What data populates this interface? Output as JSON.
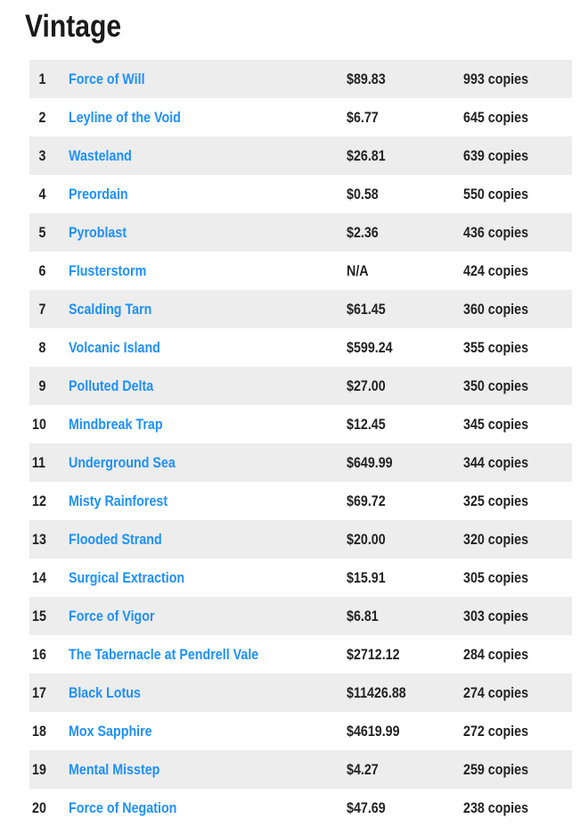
{
  "title": "Vintage",
  "colors": {
    "link": "#1e90ff",
    "alt_row_bg": "#ededed",
    "text": "#222222"
  },
  "table": {
    "rows": [
      {
        "rank": "1",
        "name": "Force of Will",
        "price": "$89.83",
        "copies": "993 copies"
      },
      {
        "rank": "2",
        "name": "Leyline of the Void",
        "price": "$6.77",
        "copies": "645 copies"
      },
      {
        "rank": "3",
        "name": "Wasteland",
        "price": "$26.81",
        "copies": "639 copies"
      },
      {
        "rank": "4",
        "name": "Preordain",
        "price": "$0.58",
        "copies": "550 copies"
      },
      {
        "rank": "5",
        "name": "Pyroblast",
        "price": "$2.36",
        "copies": "436 copies"
      },
      {
        "rank": "6",
        "name": "Flusterstorm",
        "price": "N/A",
        "copies": "424 copies"
      },
      {
        "rank": "7",
        "name": "Scalding Tarn",
        "price": "$61.45",
        "copies": "360 copies"
      },
      {
        "rank": "8",
        "name": "Volcanic Island",
        "price": "$599.24",
        "copies": "355 copies"
      },
      {
        "rank": "9",
        "name": "Polluted Delta",
        "price": "$27.00",
        "copies": "350 copies"
      },
      {
        "rank": "10",
        "name": "Mindbreak Trap",
        "price": "$12.45",
        "copies": "345 copies"
      },
      {
        "rank": "11",
        "name": "Underground Sea",
        "price": "$649.99",
        "copies": "344 copies"
      },
      {
        "rank": "12",
        "name": "Misty Rainforest",
        "price": "$69.72",
        "copies": "325 copies"
      },
      {
        "rank": "13",
        "name": "Flooded Strand",
        "price": "$20.00",
        "copies": "320 copies"
      },
      {
        "rank": "14",
        "name": "Surgical Extraction",
        "price": "$15.91",
        "copies": "305 copies"
      },
      {
        "rank": "15",
        "name": "Force of Vigor",
        "price": "$6.81",
        "copies": "303 copies"
      },
      {
        "rank": "16",
        "name": "The Tabernacle at Pendrell Vale",
        "price": "$2712.12",
        "copies": "284 copies"
      },
      {
        "rank": "17",
        "name": "Black Lotus",
        "price": "$11426.88",
        "copies": "274 copies"
      },
      {
        "rank": "18",
        "name": "Mox Sapphire",
        "price": "$4619.99",
        "copies": "272 copies"
      },
      {
        "rank": "19",
        "name": "Mental Misstep",
        "price": "$4.27",
        "copies": "259 copies"
      },
      {
        "rank": "20",
        "name": "Force of Negation",
        "price": "$47.69",
        "copies": "238 copies"
      }
    ]
  }
}
